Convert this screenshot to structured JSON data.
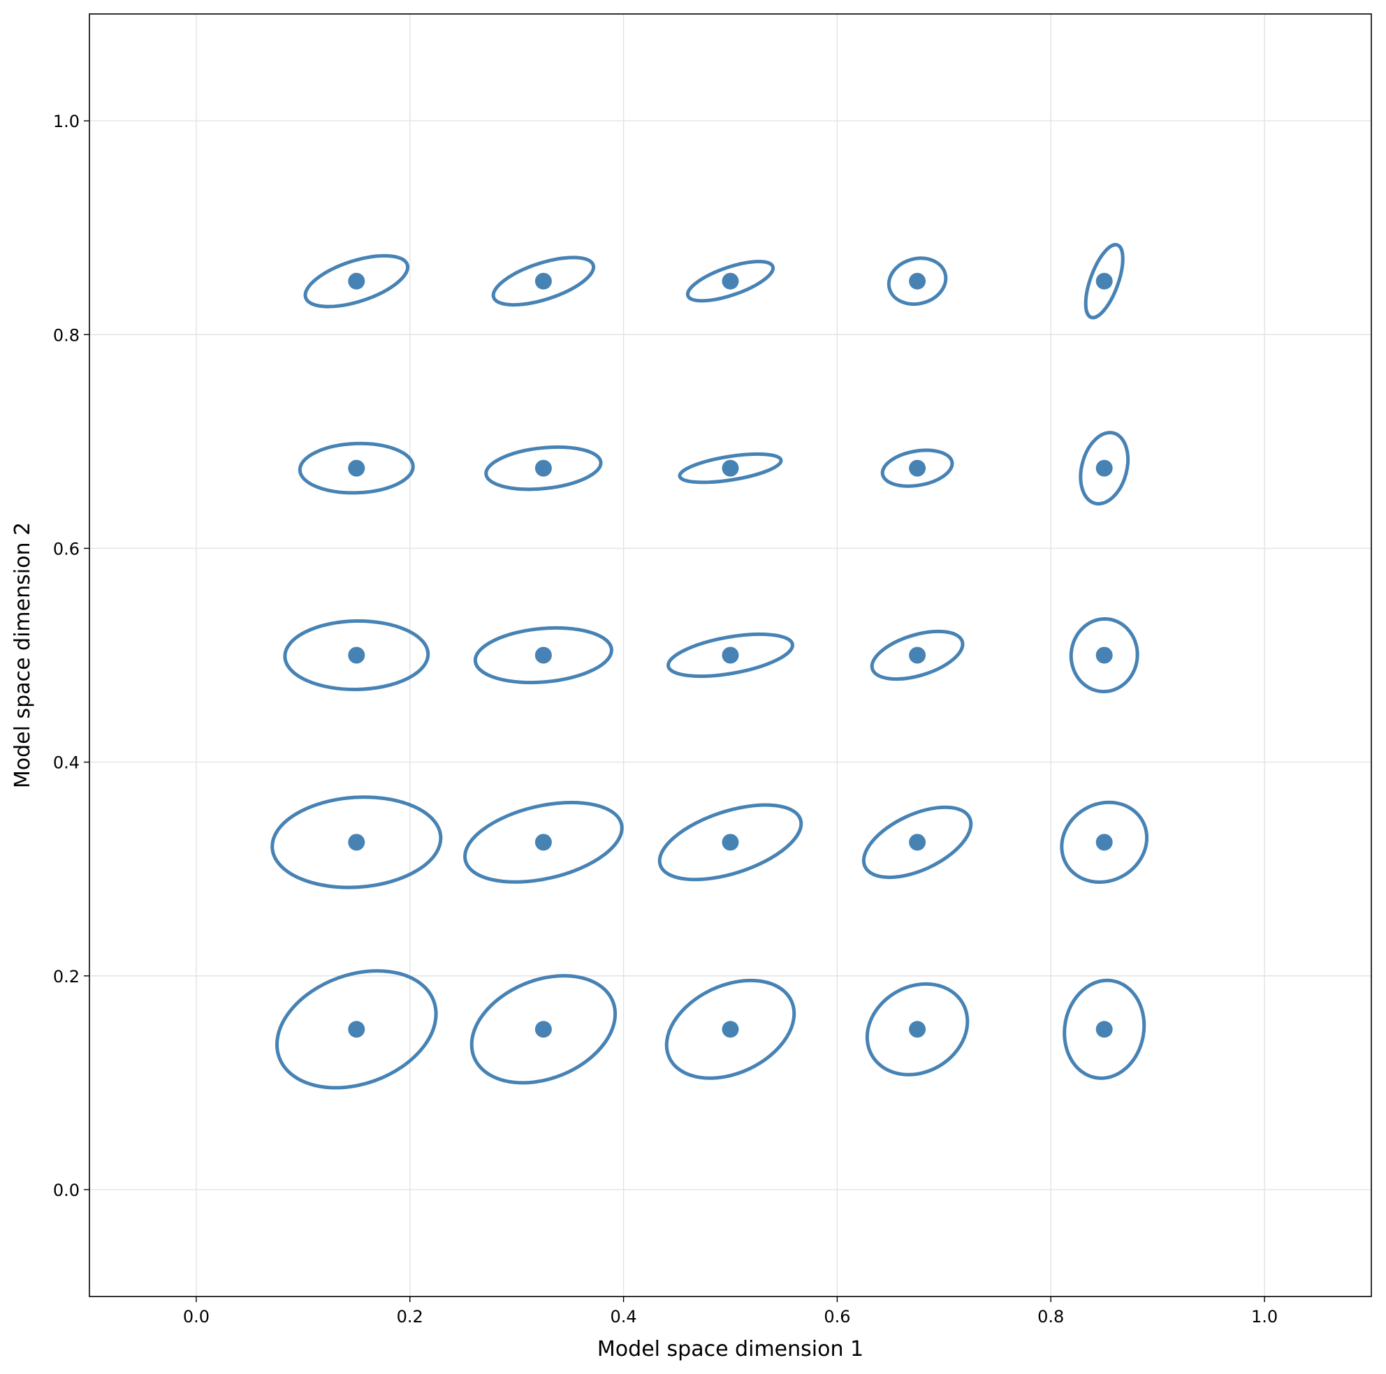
{
  "chart_data": {
    "type": "scatter",
    "title": "",
    "xlabel": "Model space dimension 1",
    "ylabel": "Model space dimension 2",
    "xlim": [
      -0.1,
      1.1
    ],
    "ylim": [
      -0.1,
      1.1
    ],
    "xticks": [
      0.0,
      0.2,
      0.4,
      0.6,
      0.8,
      1.0
    ],
    "yticks": [
      0.0,
      0.2,
      0.4,
      0.6,
      0.8,
      1.0
    ],
    "xtick_labels": [
      "0.0",
      "0.2",
      "0.4",
      "0.6",
      "0.8",
      "1.0"
    ],
    "ytick_labels": [
      "0.0",
      "0.2",
      "0.4",
      "0.6",
      "0.8",
      "1.0"
    ],
    "grid": true,
    "color": "#4682b4",
    "points": [
      {
        "x": 0.15,
        "y": 0.85,
        "ellipse": {
          "rx": 0.05,
          "ry": 0.019,
          "angle": 18
        }
      },
      {
        "x": 0.325,
        "y": 0.85,
        "ellipse": {
          "rx": 0.049,
          "ry": 0.017,
          "angle": 18
        }
      },
      {
        "x": 0.5,
        "y": 0.85,
        "ellipse": {
          "rx": 0.042,
          "ry": 0.013,
          "angle": 19
        }
      },
      {
        "x": 0.675,
        "y": 0.85,
        "ellipse": {
          "rx": 0.027,
          "ry": 0.021,
          "angle": 15
        }
      },
      {
        "x": 0.85,
        "y": 0.85,
        "ellipse": {
          "rx": 0.013,
          "ry": 0.036,
          "angle": -20
        }
      },
      {
        "x": 0.15,
        "y": 0.675,
        "ellipse": {
          "rx": 0.053,
          "ry": 0.023,
          "angle": 2
        }
      },
      {
        "x": 0.325,
        "y": 0.675,
        "ellipse": {
          "rx": 0.054,
          "ry": 0.019,
          "angle": 6
        }
      },
      {
        "x": 0.5,
        "y": 0.675,
        "ellipse": {
          "rx": 0.048,
          "ry": 0.011,
          "angle": 9
        }
      },
      {
        "x": 0.675,
        "y": 0.675,
        "ellipse": {
          "rx": 0.033,
          "ry": 0.016,
          "angle": 10
        }
      },
      {
        "x": 0.85,
        "y": 0.675,
        "ellipse": {
          "rx": 0.021,
          "ry": 0.034,
          "angle": -15
        }
      },
      {
        "x": 0.15,
        "y": 0.5,
        "ellipse": {
          "rx": 0.067,
          "ry": 0.032,
          "angle": 1
        }
      },
      {
        "x": 0.325,
        "y": 0.5,
        "ellipse": {
          "rx": 0.064,
          "ry": 0.025,
          "angle": 5
        }
      },
      {
        "x": 0.5,
        "y": 0.5,
        "ellipse": {
          "rx": 0.059,
          "ry": 0.017,
          "angle": 10
        }
      },
      {
        "x": 0.675,
        "y": 0.5,
        "ellipse": {
          "rx": 0.044,
          "ry": 0.019,
          "angle": 17
        }
      },
      {
        "x": 0.85,
        "y": 0.5,
        "ellipse": {
          "rx": 0.031,
          "ry": 0.034,
          "angle": -5
        }
      },
      {
        "x": 0.15,
        "y": 0.325,
        "ellipse": {
          "rx": 0.079,
          "ry": 0.042,
          "angle": 4
        }
      },
      {
        "x": 0.325,
        "y": 0.325,
        "ellipse": {
          "rx": 0.075,
          "ry": 0.034,
          "angle": 13
        }
      },
      {
        "x": 0.5,
        "y": 0.325,
        "ellipse": {
          "rx": 0.069,
          "ry": 0.029,
          "angle": 18
        }
      },
      {
        "x": 0.675,
        "y": 0.325,
        "ellipse": {
          "rx": 0.054,
          "ry": 0.026,
          "angle": 25
        }
      },
      {
        "x": 0.85,
        "y": 0.325,
        "ellipse": {
          "rx": 0.041,
          "ry": 0.036,
          "angle": 30
        }
      },
      {
        "x": 0.15,
        "y": 0.15,
        "ellipse": {
          "rx": 0.077,
          "ry": 0.051,
          "angle": 20
        }
      },
      {
        "x": 0.325,
        "y": 0.15,
        "ellipse": {
          "rx": 0.07,
          "ry": 0.046,
          "angle": 22
        }
      },
      {
        "x": 0.5,
        "y": 0.15,
        "ellipse": {
          "rx": 0.063,
          "ry": 0.041,
          "angle": 25
        }
      },
      {
        "x": 0.675,
        "y": 0.15,
        "ellipse": {
          "rx": 0.049,
          "ry": 0.04,
          "angle": 30
        }
      },
      {
        "x": 0.85,
        "y": 0.15,
        "ellipse": {
          "rx": 0.037,
          "ry": 0.046,
          "angle": -10
        }
      }
    ]
  }
}
